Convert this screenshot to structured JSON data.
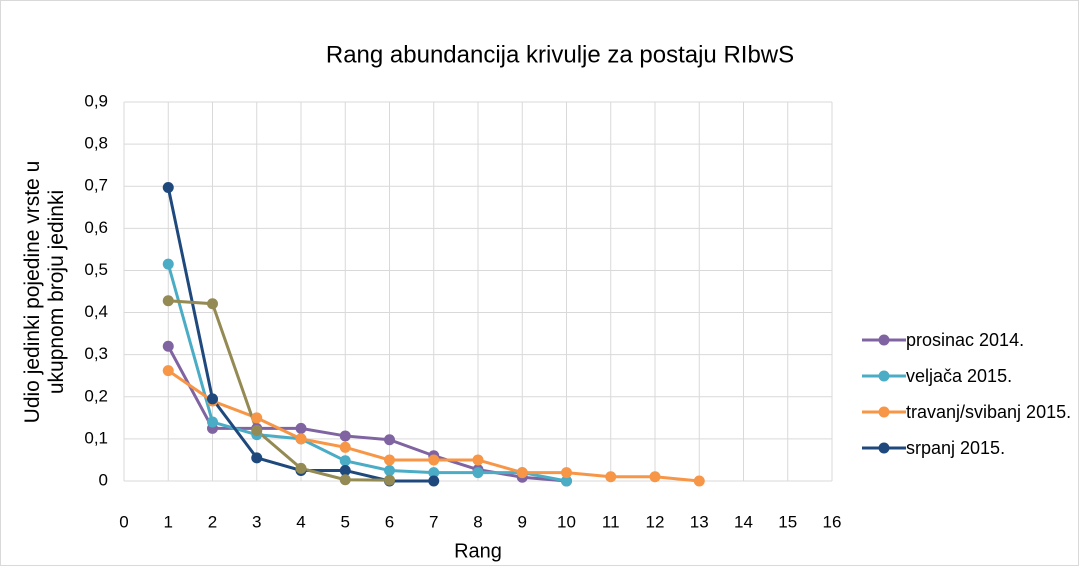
{
  "chart_data": {
    "type": "line",
    "title": "Rang abundancija krivulje za postaju RIbwS",
    "x_label": "Rang",
    "y_label": "Udio jedinki pojedine vrste u ukupnom broju jedinki",
    "x": [
      1,
      2,
      3,
      4,
      5,
      6,
      7,
      8,
      9,
      10,
      11,
      12,
      13
    ],
    "series": [
      {
        "name": "prosinac 2014.",
        "color": "#8064a2",
        "values": [
          0.32,
          0.125,
          0.125,
          0.125,
          0.107,
          0.098,
          0.06,
          0.027,
          0.009,
          0,
          null,
          null,
          null
        ]
      },
      {
        "name": "veljača 2015.",
        "color": "#4bacc6",
        "values": [
          0.515,
          0.14,
          0.11,
          0.1,
          0.048,
          0.025,
          0.02,
          0.02,
          0.02,
          0,
          null,
          null,
          null
        ]
      },
      {
        "name": "travanj/svibanj 2015.",
        "color": "#f79646",
        "values": [
          0.262,
          0.19,
          0.15,
          0.1,
          0.08,
          0.05,
          0.05,
          0.05,
          0.02,
          0.02,
          0.01,
          0.01,
          0
        ]
      },
      {
        "name": "srpanj 2015.",
        "color": "#1f497d",
        "values": [
          0.697,
          0.195,
          0.055,
          0.025,
          0.025,
          0,
          0,
          null,
          null,
          null,
          null,
          null,
          null
        ]
      },
      {
        "color": "#948a54",
        "values": [
          0.428,
          0.421,
          0.12,
          0.03,
          0.003,
          0.002,
          null,
          null,
          null,
          null,
          null,
          null,
          null
        ]
      }
    ],
    "xlim": [
      0,
      16
    ],
    "xticks": [
      0,
      1,
      2,
      3,
      4,
      5,
      6,
      7,
      8,
      9,
      10,
      11,
      12,
      13,
      14,
      15,
      16
    ],
    "ylim": [
      0,
      0.9
    ],
    "yticks": [
      0,
      {
        "value": 0.1,
        "label": "0,1"
      },
      {
        "value": 0.2,
        "label": "0,2"
      },
      {
        "value": 0.3,
        "label": "0,3"
      },
      {
        "value": 0.4,
        "label": "0,4"
      },
      {
        "value": 0.5,
        "label": "0,5"
      },
      {
        "value": 0.6,
        "label": "0,6"
      },
      {
        "value": 0.7,
        "label": "0,7"
      },
      {
        "value": 0.8,
        "label": "0,8"
      },
      {
        "value": 0.9,
        "label": "0,9"
      }
    ],
    "grid": true,
    "legend": "right"
  }
}
